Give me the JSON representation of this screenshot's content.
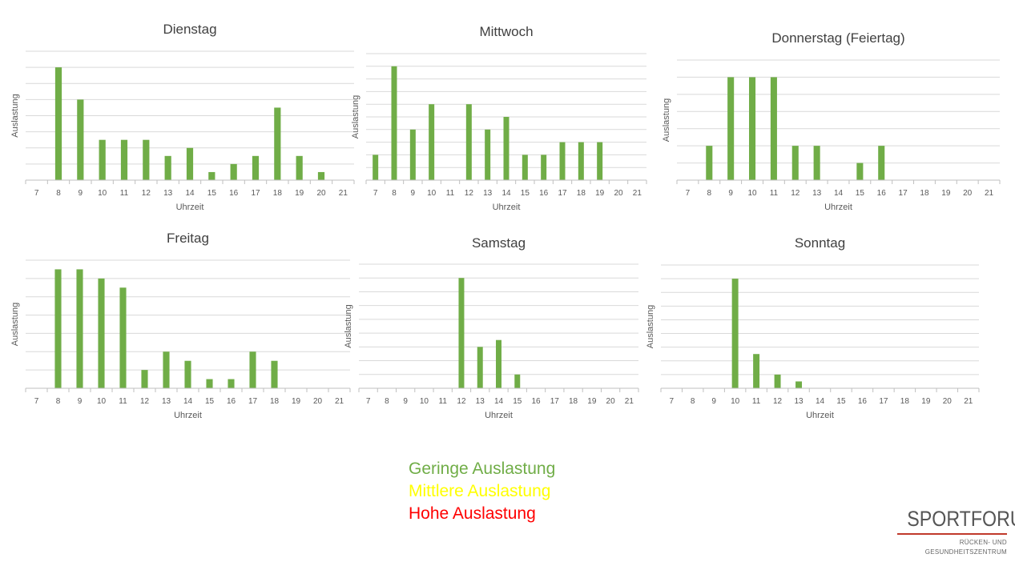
{
  "chart_data": [
    {
      "type": "bar",
      "title": "Dienstag",
      "xlabel": "Uhrzeit",
      "ylabel": "Auslastung",
      "categories": [
        "7",
        "8",
        "9",
        "10",
        "11",
        "12",
        "13",
        "14",
        "15",
        "16",
        "17",
        "18",
        "19",
        "20",
        "21"
      ],
      "values": [
        0,
        7,
        5,
        2.5,
        2.5,
        2.5,
        1.5,
        2,
        0.5,
        1,
        1.5,
        4.5,
        1.5,
        0.5,
        0
      ],
      "ylim": [
        0,
        8
      ],
      "grid": true,
      "color": "#70ad47"
    },
    {
      "type": "bar",
      "title": "Mittwoch",
      "xlabel": "Uhrzeit",
      "ylabel": "Auslastung",
      "categories": [
        "7",
        "8",
        "9",
        "10",
        "11",
        "12",
        "13",
        "14",
        "15",
        "16",
        "17",
        "18",
        "19",
        "20",
        "21"
      ],
      "values": [
        2,
        9,
        4,
        6,
        0,
        6,
        4,
        5,
        2,
        2,
        3,
        3,
        3,
        0,
        0
      ],
      "ylim": [
        0,
        10
      ],
      "grid": true,
      "color": "#70ad47"
    },
    {
      "type": "bar",
      "title": "Donnerstag (Feiertag)",
      "xlabel": "Uhrzeit",
      "ylabel": "Auslastung",
      "categories": [
        "7",
        "8",
        "9",
        "10",
        "11",
        "12",
        "13",
        "14",
        "15",
        "16",
        "17",
        "18",
        "19",
        "20",
        "21"
      ],
      "values": [
        0,
        2,
        6,
        6,
        6,
        2,
        2,
        0,
        1,
        2,
        0,
        0,
        0,
        0,
        0
      ],
      "ylim": [
        0,
        7
      ],
      "grid": true,
      "color": "#70ad47"
    },
    {
      "type": "bar",
      "title": "Freitag",
      "xlabel": "Uhrzeit",
      "ylabel": "Auslastung",
      "categories": [
        "7",
        "8",
        "9",
        "10",
        "11",
        "12",
        "13",
        "14",
        "15",
        "16",
        "17",
        "18",
        "19",
        "20",
        "21"
      ],
      "values": [
        0,
        6.5,
        6.5,
        6,
        5.5,
        1,
        2,
        1.5,
        0.5,
        0.5,
        2,
        1.5,
        0,
        0,
        0
      ],
      "ylim": [
        0,
        7
      ],
      "grid": true,
      "color": "#70ad47"
    },
    {
      "type": "bar",
      "title": "Samstag",
      "xlabel": "Uhrzeit",
      "ylabel": "Auslastung",
      "categories": [
        "7",
        "8",
        "9",
        "10",
        "11",
        "12",
        "13",
        "14",
        "15",
        "16",
        "17",
        "18",
        "19",
        "20",
        "21"
      ],
      "values": [
        0,
        0,
        0,
        0,
        0,
        8,
        3,
        3.5,
        1,
        0,
        0,
        0,
        0,
        0,
        0
      ],
      "ylim": [
        0,
        9
      ],
      "grid": true,
      "color": "#70ad47"
    },
    {
      "type": "bar",
      "title": "Sonntag",
      "xlabel": "Uhrzeit",
      "ylabel": "Auslastung",
      "categories": [
        "7",
        "8",
        "9",
        "10",
        "11",
        "12",
        "13",
        "14",
        "15",
        "16",
        "17",
        "18",
        "19",
        "20",
        "21"
      ],
      "values": [
        0,
        0,
        0,
        8,
        2.5,
        1,
        0.5,
        0,
        0,
        0,
        0,
        0,
        0,
        0,
        0
      ],
      "ylim": [
        0,
        9
      ],
      "grid": true,
      "color": "#70ad47"
    }
  ],
  "legend": {
    "items": [
      {
        "label": "Geringe Auslastung",
        "color": "#70ad47"
      },
      {
        "label": "Mittlere Auslastung",
        "color": "#ffff00"
      },
      {
        "label": "Hohe Auslastung",
        "color": "#ff0000"
      }
    ]
  },
  "logo": {
    "name": "SPORTFORUM",
    "line1": "RÜCKEN- UND",
    "line2": "GESUNDHEITSZENTRUM",
    "accent_color": "#c0392b"
  }
}
